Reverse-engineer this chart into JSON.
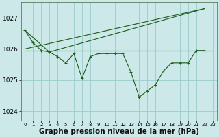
{
  "background_color": "#cce8e8",
  "grid_color": "#99cccc",
  "line_color": "#1a5c1a",
  "xlabel": "Graphe pression niveau de la mer (hPa)",
  "xlabel_fontsize": 7.5,
  "xlim": [
    -0.5,
    23.5
  ],
  "ylim": [
    1023.7,
    1027.5
  ],
  "yticks": [
    1024,
    1025,
    1026,
    1027
  ],
  "ytick_fontsize": 6.5,
  "xtick_fontsize": 5.0,
  "xticks": [
    0,
    1,
    2,
    3,
    4,
    5,
    6,
    7,
    8,
    9,
    10,
    11,
    12,
    13,
    14,
    15,
    16,
    17,
    18,
    19,
    20,
    21,
    22,
    23
  ],
  "series": [
    {
      "x": [
        0,
        1,
        2,
        3,
        4,
        5,
        6,
        7,
        8,
        9,
        10,
        11,
        12,
        13,
        14,
        15,
        16,
        17,
        18,
        19,
        20,
        21,
        22
      ],
      "y": [
        1026.6,
        1026.2,
        1025.95,
        1025.9,
        1025.75,
        1025.55,
        1025.85,
        1025.05,
        1025.75,
        1025.85,
        1025.85,
        1025.85,
        1025.85,
        1025.25,
        1024.45,
        1024.65,
        1024.85,
        1025.3,
        1025.55,
        1025.55,
        1025.55,
        1025.95,
        1025.95
      ]
    },
    {
      "x": [
        0,
        23
      ],
      "y": [
        1025.95,
        1025.95
      ]
    },
    {
      "x": [
        0,
        22
      ],
      "y": [
        1026.0,
        1027.3
      ]
    },
    {
      "x": [
        0,
        3,
        22
      ],
      "y": [
        1026.6,
        1025.9,
        1027.3
      ]
    }
  ]
}
